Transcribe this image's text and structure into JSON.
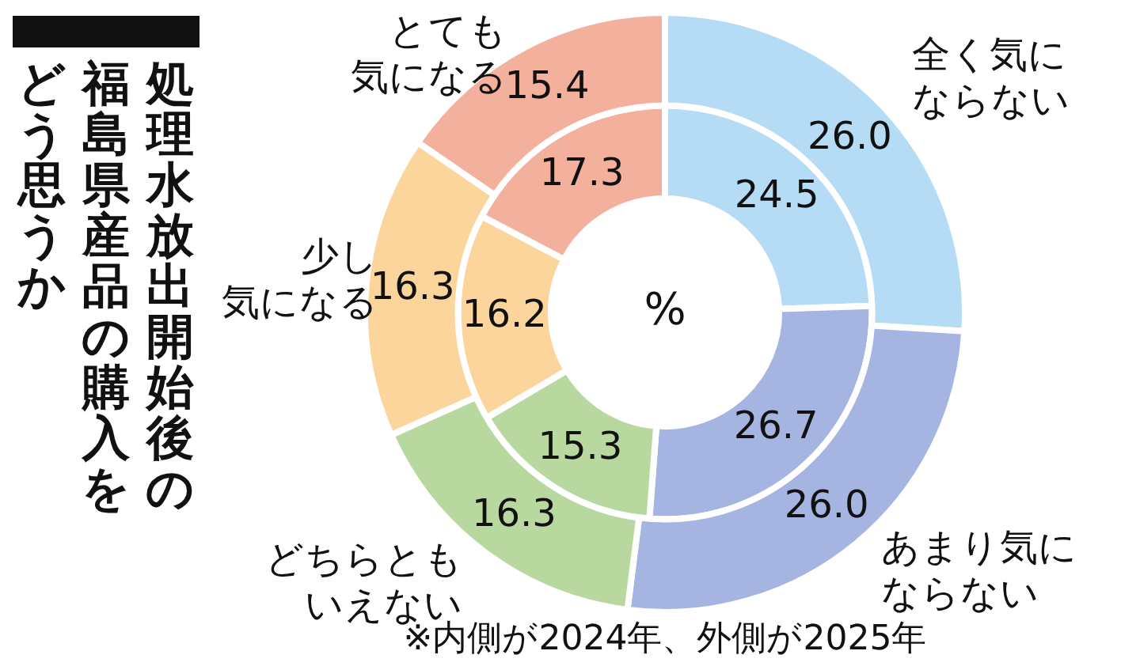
{
  "chart_data": {
    "type": "donut",
    "title": "処理水放出開始後の福島県産品の購入をどう思うか",
    "categories": [
      "全く気にならない",
      "あまり気にならない",
      "どちらともいえない",
      "少し気になる",
      "とても気になる"
    ],
    "colors": [
      "#b5dbf5",
      "#a6b4e2",
      "#b8d8a0",
      "#fcd59c",
      "#f3b09c"
    ],
    "series": [
      {
        "values": [
          26.0,
          26.0,
          16.3,
          16.3,
          15.4
        ],
        "value_labels": [
          "26.0",
          "26.0",
          "16.3",
          "16.3",
          "15.4"
        ]
      },
      {
        "values": [
          24.5,
          26.7,
          15.3,
          16.2,
          17.3
        ],
        "value_labels": [
          "24.5",
          "26.7",
          "15.3",
          "16.2",
          "17.3"
        ]
      }
    ],
    "legend": false,
    "annotations": [
      "%",
      "※内側が2024年、外側が2025年"
    ]
  }
}
